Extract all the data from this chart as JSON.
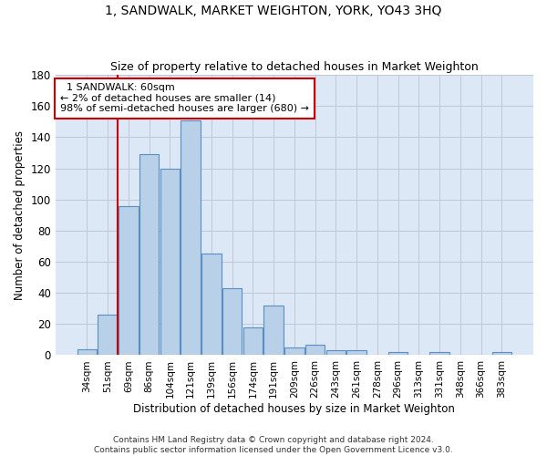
{
  "title": "1, SANDWALK, MARKET WEIGHTON, YORK, YO43 3HQ",
  "subtitle": "Size of property relative to detached houses in Market Weighton",
  "xlabel": "Distribution of detached houses by size in Market Weighton",
  "ylabel": "Number of detached properties",
  "bar_color": "#b8d0e8",
  "bar_edge_color": "#5b8ec4",
  "background_color": "#ffffff",
  "plot_bg_color": "#dce8f5",
  "grid_color": "#c0c8d8",
  "categories": [
    "34sqm",
    "51sqm",
    "69sqm",
    "86sqm",
    "104sqm",
    "121sqm",
    "139sqm",
    "156sqm",
    "174sqm",
    "191sqm",
    "209sqm",
    "226sqm",
    "243sqm",
    "261sqm",
    "278sqm",
    "296sqm",
    "313sqm",
    "331sqm",
    "348sqm",
    "366sqm",
    "383sqm"
  ],
  "values": [
    4,
    26,
    96,
    129,
    120,
    151,
    65,
    43,
    18,
    32,
    5,
    7,
    3,
    3,
    0,
    2,
    0,
    2,
    0,
    0,
    2
  ],
  "ylim": [
    0,
    180
  ],
  "yticks": [
    0,
    20,
    40,
    60,
    80,
    100,
    120,
    140,
    160,
    180
  ],
  "red_line_x": 1.47,
  "annotation_line1": "  1 SANDWALK: 60sqm",
  "annotation_line2": "← 2% of detached houses are smaller (14)",
  "annotation_line3": "98% of semi-detached houses are larger (680) →",
  "annotation_box_color": "#ffffff",
  "annotation_border_color": "#cc0000",
  "footnote1": "Contains HM Land Registry data © Crown copyright and database right 2024.",
  "footnote2": "Contains public sector information licensed under the Open Government Licence v3.0."
}
